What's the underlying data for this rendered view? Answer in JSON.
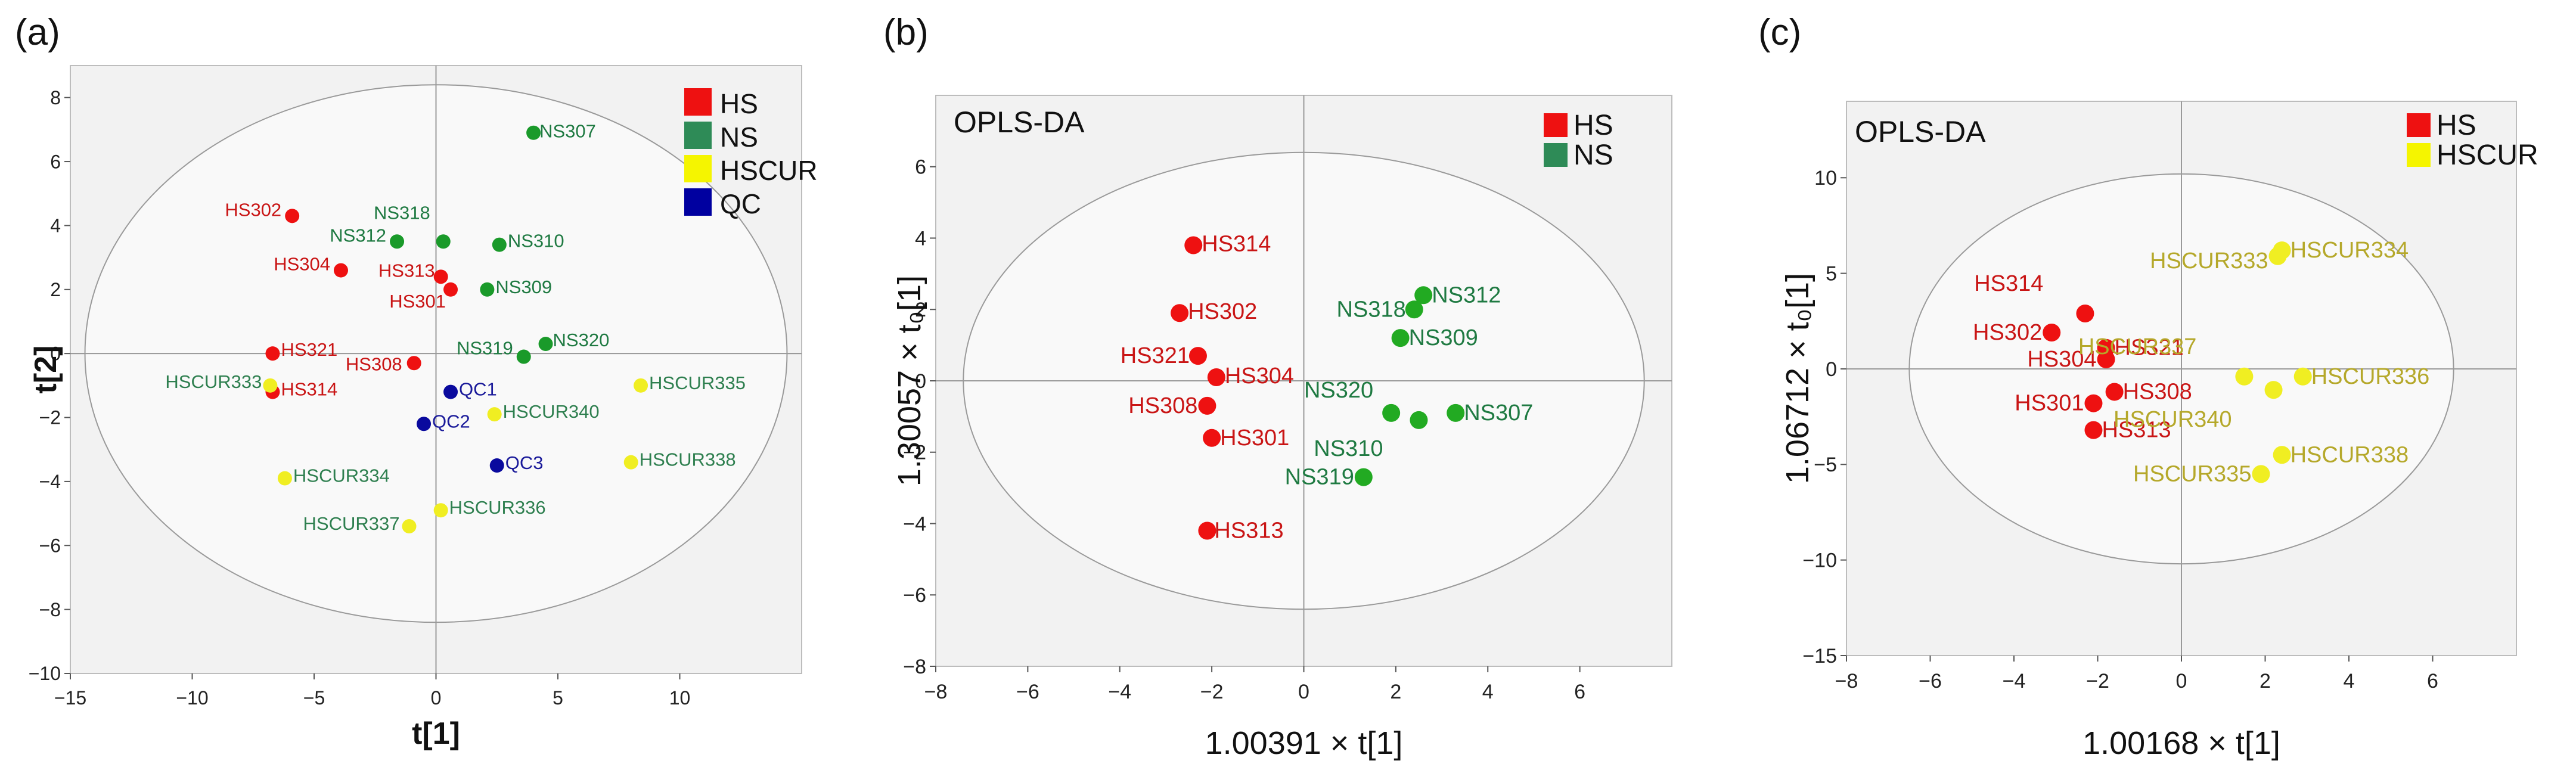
{
  "chart_data": [
    {
      "type": "scatter",
      "panel_label": "(a)",
      "title": "",
      "xlabel": "t[1]",
      "ylabel": "t[2]",
      "xlim": [
        -15,
        15
      ],
      "ylim": [
        -10,
        9
      ],
      "xticks": [
        -15,
        -10,
        -5,
        0,
        5,
        10
      ],
      "yticks": [
        -10,
        -8,
        -6,
        -4,
        -2,
        0,
        2,
        4,
        6,
        8
      ],
      "ellipse": {
        "cx": 0,
        "cy": 0,
        "rx": 14.4,
        "ry": 8.4
      },
      "legend_position": "top-right",
      "colors": {
        "HS": "#ee1111",
        "NS": "#1a9a2a",
        "HSCUR": "#f0ee22",
        "QC": "#0a0a9e"
      },
      "label_colors": {
        "HS": "#c91515",
        "NS": "#1f7a42",
        "HSCUR": "#2e7f4f",
        "QC": "#1a1a9a"
      },
      "legend": [
        {
          "name": "HS",
          "color": "#ee1111"
        },
        {
          "name": "NS",
          "color": "#2e8b57"
        },
        {
          "name": "HSCUR",
          "color": "#f5f500"
        },
        {
          "name": "QC",
          "color": "#0000a0"
        }
      ],
      "points": [
        {
          "label": "HS302",
          "group": "HS",
          "x": -5.9,
          "y": 4.3
        },
        {
          "label": "HS304",
          "group": "HS",
          "x": -3.9,
          "y": 2.6
        },
        {
          "label": "HS313",
          "group": "HS",
          "x": 0.2,
          "y": 2.4
        },
        {
          "label": "HS301",
          "group": "HS",
          "x": 0.6,
          "y": 2.0
        },
        {
          "label": "HS321",
          "group": "HS",
          "x": -6.7,
          "y": 0.0
        },
        {
          "label": "HS308",
          "group": "HS",
          "x": -0.9,
          "y": -0.3
        },
        {
          "label": "HS314",
          "group": "HS",
          "x": -6.7,
          "y": -1.2
        },
        {
          "label": "NS307",
          "group": "NS",
          "x": 4.0,
          "y": 6.9
        },
        {
          "label": "NS312",
          "group": "NS",
          "x": -1.6,
          "y": 3.5
        },
        {
          "label": "NS318",
          "group": "NS",
          "x": 0.3,
          "y": 3.5
        },
        {
          "label": "NS310",
          "group": "NS",
          "x": 2.6,
          "y": 3.4
        },
        {
          "label": "NS309",
          "group": "NS",
          "x": 2.1,
          "y": 2.0
        },
        {
          "label": "NS320",
          "group": "NS",
          "x": 4.5,
          "y": 0.3
        },
        {
          "label": "NS319",
          "group": "NS",
          "x": 3.6,
          "y": -0.1
        },
        {
          "label": "HSCUR333",
          "group": "HSCUR",
          "x": -6.8,
          "y": -1.0
        },
        {
          "label": "HSCUR335",
          "group": "HSCUR",
          "x": 8.4,
          "y": -1.0
        },
        {
          "label": "HSCUR340",
          "group": "HSCUR",
          "x": 2.4,
          "y": -1.9
        },
        {
          "label": "HSCUR338",
          "group": "HSCUR",
          "x": 8.0,
          "y": -3.4
        },
        {
          "label": "HSCUR334",
          "group": "HSCUR",
          "x": -6.2,
          "y": -3.9
        },
        {
          "label": "HSCUR336",
          "group": "HSCUR",
          "x": 0.2,
          "y": -4.9
        },
        {
          "label": "HSCUR337",
          "group": "HSCUR",
          "x": -1.1,
          "y": -5.4
        },
        {
          "label": "QC1",
          "group": "QC",
          "x": 0.6,
          "y": -1.2
        },
        {
          "label": "QC2",
          "group": "QC",
          "x": -0.5,
          "y": -2.2
        },
        {
          "label": "QC3",
          "group": "QC",
          "x": 2.5,
          "y": -3.5
        }
      ]
    },
    {
      "type": "scatter",
      "panel_label": "(b)",
      "title": "OPLS-DA",
      "xlabel": "1.00391 × t[1]",
      "ylabel": "1.30057 × t₀[1]",
      "xlim": [
        -8,
        8
      ],
      "ylim": [
        -8,
        8
      ],
      "xticks": [
        -8,
        -6,
        -4,
        -2,
        0,
        2,
        4,
        6
      ],
      "yticks": [
        -8,
        -6,
        -4,
        -2,
        0,
        2,
        4,
        6
      ],
      "ellipse": {
        "cx": 0,
        "cy": 0,
        "rx": 7.4,
        "ry": 6.4
      },
      "legend_position": "top-right",
      "colors": {
        "HS": "#ee1111",
        "NS": "#22aa22"
      },
      "label_colors": {
        "HS": "#c91515",
        "NS": "#1f7a42"
      },
      "legend": [
        {
          "name": "HS",
          "color": "#ee1111"
        },
        {
          "name": "NS",
          "color": "#2e8b57"
        }
      ],
      "points": [
        {
          "label": "HS314",
          "group": "HS",
          "x": -2.4,
          "y": 3.8
        },
        {
          "label": "HS302",
          "group": "HS",
          "x": -2.7,
          "y": 1.9
        },
        {
          "label": "HS321",
          "group": "HS",
          "x": -2.3,
          "y": 0.7
        },
        {
          "label": "HS304",
          "group": "HS",
          "x": -1.9,
          "y": 0.1
        },
        {
          "label": "HS308",
          "group": "HS",
          "x": -2.1,
          "y": -0.7
        },
        {
          "label": "HS301",
          "group": "HS",
          "x": -2.0,
          "y": -1.6
        },
        {
          "label": "HS313",
          "group": "HS",
          "x": -2.1,
          "y": -4.2
        },
        {
          "label": "NS312",
          "group": "NS",
          "x": 2.6,
          "y": 2.4
        },
        {
          "label": "NS318",
          "group": "NS",
          "x": 2.4,
          "y": 2.0
        },
        {
          "label": "NS309",
          "group": "NS",
          "x": 2.1,
          "y": 1.2
        },
        {
          "label": "NS320",
          "group": "NS",
          "x": 1.9,
          "y": -0.9
        },
        {
          "label": "NS310",
          "group": "NS",
          "x": 2.5,
          "y": -1.1
        },
        {
          "label": "NS307",
          "group": "NS",
          "x": 3.3,
          "y": -0.9
        },
        {
          "label": "NS319",
          "group": "NS",
          "x": 1.3,
          "y": -2.7
        }
      ]
    },
    {
      "type": "scatter",
      "panel_label": "(c)",
      "title": "OPLS-DA",
      "xlabel": "1.00168 × t[1]",
      "ylabel": "1.06712 × t₀[1]",
      "xlim": [
        -8,
        8
      ],
      "ylim": [
        -15,
        14
      ],
      "xticks": [
        -8,
        -6,
        -4,
        -2,
        0,
        2,
        4,
        6
      ],
      "yticks": [
        -15,
        -10,
        -5,
        0,
        5,
        10
      ],
      "ellipse": {
        "cx": 0,
        "cy": 0,
        "rx": 6.5,
        "ry": 10.2
      },
      "legend_position": "top-right",
      "colors": {
        "HS": "#ee1111",
        "HSCUR": "#f0ee22"
      },
      "label_colors": {
        "HS": "#c91515",
        "HSCUR": "#b5a82a"
      },
      "legend": [
        {
          "name": "HS",
          "color": "#ee1111"
        },
        {
          "name": "HSCUR",
          "color": "#f5f500"
        }
      ],
      "points": [
        {
          "label": "HS314",
          "group": "HS",
          "x": -2.3,
          "y": 2.9
        },
        {
          "label": "HS302",
          "group": "HS",
          "x": -3.1,
          "y": 1.9
        },
        {
          "label": "HS321",
          "group": "HS",
          "x": -1.8,
          "y": 1.1
        },
        {
          "label": "HS304",
          "group": "HS",
          "x": -1.8,
          "y": 0.5
        },
        {
          "label": "HS308",
          "group": "HS",
          "x": -1.6,
          "y": -1.2
        },
        {
          "label": "HS301",
          "group": "HS",
          "x": -2.1,
          "y": -1.8
        },
        {
          "label": "HS313",
          "group": "HS",
          "x": -2.1,
          "y": -3.2
        },
        {
          "label": "HSCUR334",
          "group": "HSCUR",
          "x": 2.4,
          "y": 6.2
        },
        {
          "label": "HSCUR333",
          "group": "HSCUR",
          "x": 2.3,
          "y": 5.9
        },
        {
          "label": "HSCUR337",
          "group": "HSCUR",
          "x": 1.5,
          "y": -0.4
        },
        {
          "label": "HSCUR336",
          "group": "HSCUR",
          "x": 2.9,
          "y": -0.4
        },
        {
          "label": "HSCUR340",
          "group": "HSCUR",
          "x": 2.2,
          "y": -1.1
        },
        {
          "label": "HSCUR338",
          "group": "HSCUR",
          "x": 2.4,
          "y": -4.5
        },
        {
          "label": "HSCUR335",
          "group": "HSCUR",
          "x": 1.9,
          "y": -5.5
        }
      ]
    }
  ]
}
